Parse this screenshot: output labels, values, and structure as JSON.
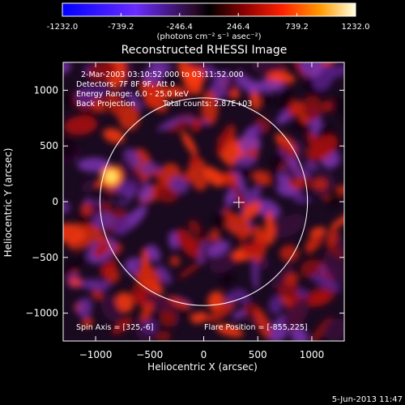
{
  "chart_data": {
    "type": "heatmap",
    "title": "Reconstructed RHESSI Image",
    "xlabel": "Heliocentric X (arcsec)",
    "ylabel": "Heliocentric Y (arcsec)",
    "xlim": [
      -1300,
      1300
    ],
    "ylim": [
      -1250,
      1250
    ],
    "xticks": [
      -1000,
      -500,
      0,
      500,
      1000
    ],
    "yticks": [
      -1000,
      -500,
      0,
      500,
      1000
    ],
    "colorbar": {
      "ticks": [
        "-1232.0",
        "-739.2",
        "-246.4",
        "246.4",
        "739.2",
        "1232.0"
      ],
      "range": [
        -1232.0,
        1232.0
      ],
      "unit_label": "(photons cm⁻² s⁻¹ asec⁻²)"
    },
    "annotations": {
      "time_range": "2-Mar-2003 03:10:52.000 to 03:11:52.000",
      "detectors": "Detectors: 7F 8F 9F, Att 0",
      "energy": "Energy Range: 6.0 - 25.0 keV",
      "method": "Back Projection",
      "total_counts": "Total counts: 2.87E+03",
      "spin_axis": "Spin Axis = [325,-6]",
      "flare_position": "Flare Position = [-855,225]"
    },
    "solar_disk": {
      "center": [
        0,
        0
      ],
      "radius": 960
    },
    "marker_plus": [
      325,
      -6
    ],
    "hot_spot": [
      -855,
      225
    ],
    "timestamp": "5-Jun-2013 11:47"
  }
}
